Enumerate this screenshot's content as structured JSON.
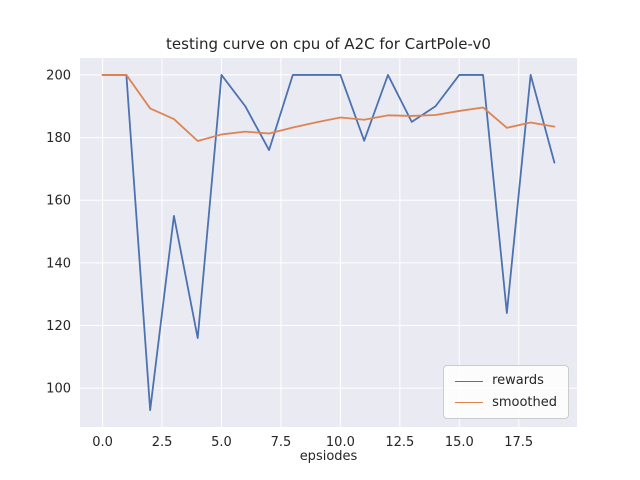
{
  "figure": {
    "background": "#ffffff"
  },
  "chart_data": {
    "type": "line",
    "title": "testing curve on cpu of A2C for CartPole-v0",
    "xlabel": "epsiodes",
    "ylabel": "",
    "x": [
      0,
      1,
      2,
      3,
      4,
      5,
      6,
      7,
      8,
      9,
      10,
      11,
      12,
      13,
      14,
      15,
      16,
      17,
      18,
      19
    ],
    "series": [
      {
        "name": "rewards",
        "color": "#4c72b0",
        "values": [
          200,
          200,
          93,
          155,
          116,
          200,
          190,
          176,
          200,
          200,
          200,
          179,
          200,
          185,
          190,
          200,
          200,
          124,
          200,
          172
        ]
      },
      {
        "name": "smoothed",
        "color": "#dd8452",
        "values": [
          200,
          200,
          189.3,
          185.9,
          178.9,
          181.0,
          181.9,
          181.3,
          183.2,
          184.9,
          186.4,
          185.7,
          187.1,
          186.9,
          187.2,
          188.5,
          189.6,
          183.1,
          184.8,
          183.5
        ]
      }
    ],
    "xlim": [
      -0.95,
      19.95
    ],
    "ylim": [
      87.6,
      205.4
    ],
    "xtick_values": [
      0,
      2.5,
      5,
      7.5,
      10,
      12.5,
      15,
      17.5
    ],
    "xtick_labels": [
      "0.0",
      "2.5",
      "5.0",
      "7.5",
      "10.0",
      "12.5",
      "15.0",
      "17.5"
    ],
    "ytick_values": [
      100,
      120,
      140,
      160,
      180,
      200
    ],
    "ytick_labels": [
      "100",
      "120",
      "140",
      "160",
      "180",
      "200"
    ],
    "grid": true,
    "legend": {
      "position": "lower right",
      "labels": [
        "rewards",
        "smoothed"
      ]
    },
    "colors": {
      "axes_bg": "#eaeaf2",
      "grid": "#ffffff",
      "tick_text": "#262626"
    }
  }
}
